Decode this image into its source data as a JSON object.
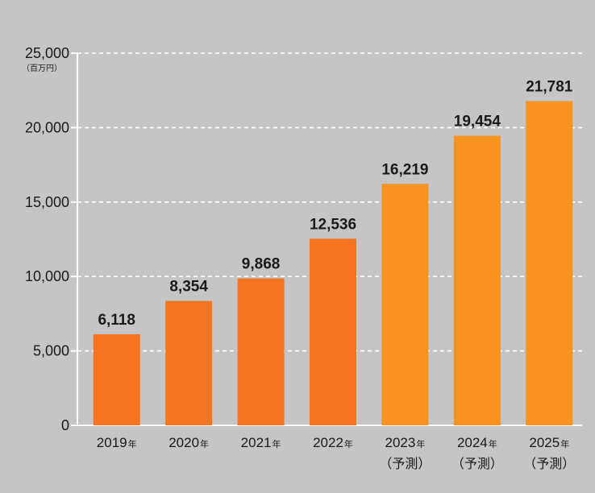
{
  "chart_data": {
    "type": "bar",
    "unit_label": "（百万円）",
    "categories": [
      {
        "year": "2019",
        "suffix": "年",
        "note": ""
      },
      {
        "year": "2020",
        "suffix": "年",
        "note": ""
      },
      {
        "year": "2021",
        "suffix": "年",
        "note": ""
      },
      {
        "year": "2022",
        "suffix": "年",
        "note": ""
      },
      {
        "year": "2023",
        "suffix": "年",
        "note": "（予測）"
      },
      {
        "year": "2024",
        "suffix": "年",
        "note": "（予測）"
      },
      {
        "year": "2025",
        "suffix": "年",
        "note": "（予測）"
      }
    ],
    "values": [
      6118,
      8354,
      9868,
      12536,
      16219,
      19454,
      21781
    ],
    "value_labels": [
      "6,118",
      "8,354",
      "9,868",
      "12,536",
      "16,219",
      "19,454",
      "21,781"
    ],
    "forecast": [
      false,
      false,
      false,
      false,
      true,
      true,
      true
    ],
    "ylim": [
      0,
      25000
    ],
    "yticks": [
      {
        "value": 0,
        "label": "0"
      },
      {
        "value": 5000,
        "label": "5,000"
      },
      {
        "value": 10000,
        "label": "10,000"
      },
      {
        "value": 15000,
        "label": "15,000"
      },
      {
        "value": 20000,
        "label": "20,000"
      },
      {
        "value": 25000,
        "label": "25,000"
      }
    ],
    "grid": true,
    "colors": {
      "actual": "#f47421",
      "forecast": "#f7931e",
      "background": "#c5c5c7",
      "grid": "#ffffff",
      "axis": "#ffffff"
    }
  }
}
